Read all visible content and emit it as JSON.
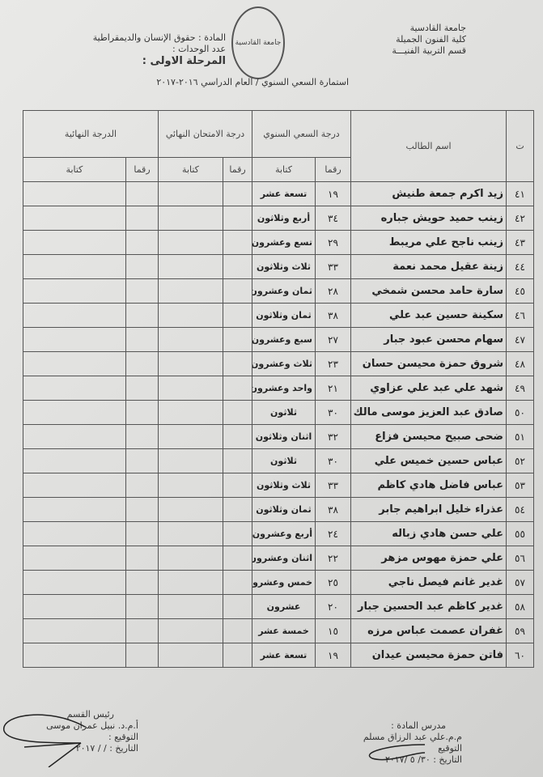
{
  "header": {
    "university": "جامعة القادسية",
    "college": "كلية الفنون الجميلة",
    "department": "قسم التربية الفنيـــة",
    "subject": "المادة : حقوق الإنسان والديمقراطية",
    "units": "عدد الوحدات :",
    "stage": "المرحلة الاولى :",
    "form_title": "استمارة السعي السنوي / العام الدراسي ٢٠١٦-٢٠١٧",
    "seal_text": "جامعة القادسية"
  },
  "table": {
    "headers": {
      "no": "ت",
      "name": "اسم الطالب",
      "annual": "درجة السعي السنوي",
      "exam": "درجة الامتحان النهائي",
      "final": "الدرجة النهائية",
      "digits": "رقما",
      "words": "كتابة"
    },
    "rows": [
      {
        "no": "٤١",
        "name": "زيد اكرم جمعة طنيش",
        "digits": "١٩",
        "words": "تسعة عشر"
      },
      {
        "no": "٤٢",
        "name": "زينب حميد حويش جباره",
        "digits": "٣٤",
        "words": "أربع وثلاثون"
      },
      {
        "no": "٤٣",
        "name": "زينب ناجح علي مريبط",
        "digits": "٢٩",
        "words": "تسع وعشرون"
      },
      {
        "no": "٤٤",
        "name": "زينة عقيل محمد نعمة",
        "digits": "٣٣",
        "words": "ثلاث وثلاثون"
      },
      {
        "no": "٤٥",
        "name": "سارة حامد محسن شمخي",
        "digits": "٢٨",
        "words": "ثمان وعشرون"
      },
      {
        "no": "٤٦",
        "name": "سكينة حسين عبد علي",
        "digits": "٣٨",
        "words": "ثمان وثلاثون"
      },
      {
        "no": "٤٧",
        "name": "سهام محسن عبود جبار",
        "digits": "٢٧",
        "words": "سبع وعشرون"
      },
      {
        "no": "٤٨",
        "name": "شروق حمزة محيسن حسان",
        "digits": "٢٣",
        "words": "ثلاث وعشرون"
      },
      {
        "no": "٤٩",
        "name": "شهد علي عبد علي عزاوي",
        "digits": "٢١",
        "words": "واحد وعشرون"
      },
      {
        "no": "٥٠",
        "name": "صادق عبد العزيز موسى مالك",
        "digits": "٣٠",
        "words": "ثلاثون"
      },
      {
        "no": "٥١",
        "name": "ضحى صبيح محيسن فزاع",
        "digits": "٣٢",
        "words": "اثنان وثلاثون"
      },
      {
        "no": "٥٢",
        "name": "عباس حسين خميس علي",
        "digits": "٣٠",
        "words": "ثلاثون"
      },
      {
        "no": "٥٣",
        "name": "عباس فاضل هادي كاظم",
        "digits": "٣٣",
        "words": "ثلاث وثلاثون"
      },
      {
        "no": "٥٤",
        "name": "عذراء خليل ابراهيم جابر",
        "digits": "٣٨",
        "words": "ثمان وثلاثون"
      },
      {
        "no": "٥٥",
        "name": "علي حسن هادي زباله",
        "digits": "٢٤",
        "words": "أربع وعشرون"
      },
      {
        "no": "٥٦",
        "name": "علي حمزة مهوس مزهر",
        "digits": "٢٢",
        "words": "اثنان وعشرون"
      },
      {
        "no": "٥٧",
        "name": "غدير غانم فيصل ناجي",
        "digits": "٢٥",
        "words": "خمس وعشرون"
      },
      {
        "no": "٥٨",
        "name": "غدير كاظم عبد الحسين جبار",
        "digits": "٢٠",
        "words": "عشرون"
      },
      {
        "no": "٥٩",
        "name": "غفران عصمت عباس مرزه",
        "digits": "١٥",
        "words": "خمسة عشر"
      },
      {
        "no": "٦٠",
        "name": "فاتن حمزة محيسن عيدان",
        "digits": "١٩",
        "words": "تسعة عشر"
      }
    ]
  },
  "footer": {
    "head_title": "رئيس القسم",
    "head_name": "أ.م.د. نبيل عمران موسى",
    "head_sign": "التوقيع :",
    "head_date": "التاريخ :    /   / ٢٠١٧",
    "teacher_title": "مدرس المادة :",
    "teacher_name": "م.م.علي عبد الرزاق مسلم",
    "teacher_sign": "التوقيع",
    "teacher_date": "التاريخ : ٣٠/ ٥ /٢٠١٧"
  }
}
